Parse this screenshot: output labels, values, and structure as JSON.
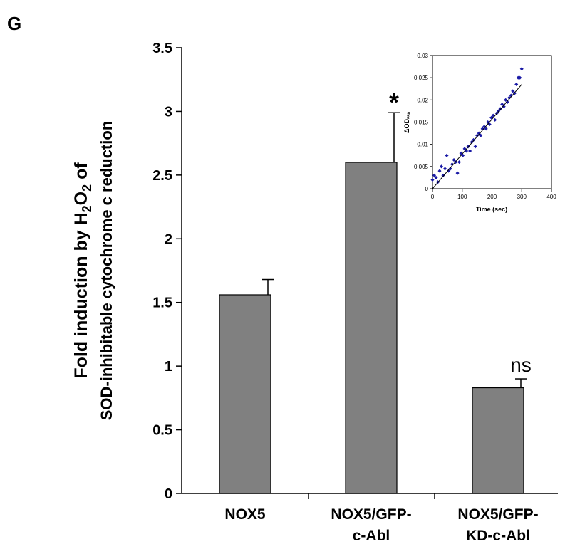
{
  "panel_label": "G",
  "chart_data": [
    {
      "type": "bar",
      "ylabel_line1": "Fold induction by H2O2 of",
      "ylabel_line2": "SOD-inhibitable cytochrome c  reduction",
      "ylim": [
        0,
        3.5
      ],
      "yticks": [
        "0",
        "0.5",
        "1",
        "1.5",
        "2",
        "2.5",
        "3",
        "3.5"
      ],
      "categories": [
        [
          "NOX5"
        ],
        [
          "NOX5/GFP-",
          "c-Abl"
        ],
        [
          "NOX5/GFP-",
          "KD-c-Abl"
        ]
      ],
      "values": [
        1.56,
        2.6,
        0.83
      ],
      "errors": [
        0.12,
        0.39,
        0.07
      ],
      "annotations": [
        "",
        "*",
        "ns"
      ],
      "bar_color": "#808080",
      "grid": false
    },
    {
      "type": "scatter",
      "xlabel": "Time (sec)",
      "ylabel": "ΔOD550",
      "xlim": [
        0,
        400
      ],
      "ylim": [
        0,
        0.03
      ],
      "xticks": [
        "0",
        "100",
        "200",
        "300",
        "400"
      ],
      "yticks": [
        "0",
        "0.005",
        "0.01",
        "0.015",
        "0.02",
        "0.025",
        "0.03"
      ],
      "point_color": "#1a1aa6",
      "x": [
        0,
        6,
        12,
        18,
        24,
        30,
        36,
        42,
        48,
        54,
        60,
        66,
        72,
        78,
        84,
        90,
        96,
        102,
        108,
        114,
        120,
        126,
        132,
        138,
        144,
        150,
        156,
        162,
        168,
        174,
        180,
        186,
        192,
        198,
        204,
        210,
        216,
        222,
        228,
        234,
        240,
        246,
        252,
        258,
        264,
        270,
        276,
        282,
        288,
        294,
        300
      ],
      "y": [
        0.002,
        0.003,
        0.0025,
        0.0015,
        0.004,
        0.005,
        0.003,
        0.0045,
        0.0075,
        0.004,
        0.0045,
        0.0055,
        0.0065,
        0.006,
        0.0035,
        0.006,
        0.008,
        0.0075,
        0.009,
        0.0085,
        0.0095,
        0.0085,
        0.0105,
        0.011,
        0.0095,
        0.012,
        0.0125,
        0.012,
        0.0135,
        0.014,
        0.0135,
        0.015,
        0.0145,
        0.016,
        0.0165,
        0.0155,
        0.017,
        0.0175,
        0.018,
        0.019,
        0.0185,
        0.02,
        0.0195,
        0.0205,
        0.021,
        0.022,
        0.0215,
        0.0235,
        0.025,
        0.025,
        0.027
      ],
      "fit": [
        [
          0,
          0.0
        ],
        [
          300,
          0.0235
        ]
      ]
    }
  ]
}
